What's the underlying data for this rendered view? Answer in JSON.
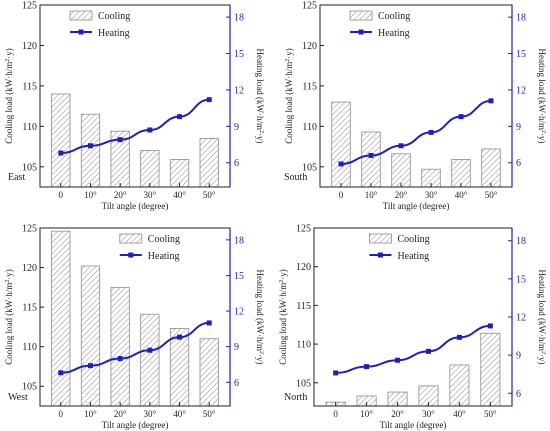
{
  "chart_data": [
    {
      "type": "bar",
      "panel_label": "East",
      "categories": [
        "0",
        "10°",
        "20°",
        "30°",
        "40°",
        "50°"
      ],
      "xlabel": "Tilt angle (degree)",
      "ylabel": "Cooling load  (kW·h/m²·y)",
      "y2label": "Heating load (kW·h/m²·y)",
      "ylim": [
        102.5,
        125
      ],
      "yticks": [
        105,
        110,
        115,
        120,
        125
      ],
      "y2lim": [
        4,
        19
      ],
      "y2ticks": [
        6,
        9,
        12,
        15,
        18
      ],
      "legend_position": "top-left",
      "series": [
        {
          "name": "Cooling",
          "kind": "bar",
          "axis": "left",
          "values": [
            114.0,
            111.5,
            109.4,
            107.0,
            105.9,
            108.5
          ]
        },
        {
          "name": "Heating",
          "kind": "line",
          "axis": "right",
          "values": [
            6.8,
            7.4,
            7.9,
            8.7,
            9.8,
            11.2
          ]
        }
      ]
    },
    {
      "type": "bar",
      "panel_label": "South",
      "categories": [
        "0",
        "10°",
        "20°",
        "30°",
        "40°",
        "50°"
      ],
      "xlabel": "Tilt angle (degree)",
      "ylabel": "Cooling load  (kW·h/m²·y)",
      "y2label": "Heating load (kW·h/m²·y)",
      "ylim": [
        102.5,
        125
      ],
      "yticks": [
        105,
        110,
        115,
        120,
        125
      ],
      "y2lim": [
        4,
        19
      ],
      "y2ticks": [
        6,
        9,
        12,
        15,
        18
      ],
      "legend_position": "top-left",
      "series": [
        {
          "name": "Cooling",
          "kind": "bar",
          "axis": "left",
          "values": [
            113.0,
            109.3,
            106.6,
            104.7,
            105.9,
            107.2
          ]
        },
        {
          "name": "Heating",
          "kind": "line",
          "axis": "right",
          "values": [
            5.9,
            6.6,
            7.4,
            8.5,
            9.8,
            11.1
          ]
        }
      ]
    },
    {
      "type": "bar",
      "panel_label": "West",
      "categories": [
        "0",
        "10°",
        "20°",
        "30°",
        "40°",
        "50°"
      ],
      "xlabel": "Tilt angle (degree)",
      "ylabel": "Cooling load  (kW·h/m²·y)",
      "y2label": "Heating load (kW·h/m²·y)",
      "ylim": [
        102.5,
        125
      ],
      "yticks": [
        105,
        110,
        115,
        120,
        125
      ],
      "y2lim": [
        4,
        19
      ],
      "y2ticks": [
        6,
        9,
        12,
        15,
        18
      ],
      "legend_position": "top-right",
      "series": [
        {
          "name": "Cooling",
          "kind": "bar",
          "axis": "left",
          "values": [
            124.6,
            120.2,
            117.5,
            114.1,
            112.3,
            111.0
          ]
        },
        {
          "name": "Heating",
          "kind": "line",
          "axis": "right",
          "values": [
            6.8,
            7.4,
            8.0,
            8.7,
            9.8,
            11.0
          ]
        }
      ]
    },
    {
      "type": "bar",
      "panel_label": "North",
      "categories": [
        "0",
        "10°",
        "20°",
        "30°",
        "40°",
        "50°"
      ],
      "xlabel": "Tilt angle (degree)",
      "ylabel": "Cooling load  (kW·h/m²·y)",
      "y2label": "Heating load (kW·h/m²·y)",
      "ylim": [
        102,
        125
      ],
      "yticks": [
        105,
        110,
        115,
        120,
        125
      ],
      "y2lim": [
        5,
        19
      ],
      "y2ticks": [
        6,
        9,
        12,
        15,
        18
      ],
      "legend_position": "top-center",
      "series": [
        {
          "name": "Cooling",
          "kind": "bar",
          "axis": "left",
          "values": [
            102.5,
            103.3,
            103.8,
            104.6,
            107.3,
            111.4
          ]
        },
        {
          "name": "Heating",
          "kind": "line",
          "axis": "right",
          "values": [
            7.6,
            8.1,
            8.6,
            9.3,
            10.4,
            11.3
          ]
        }
      ]
    }
  ],
  "colors": {
    "line": "#1f1fbf",
    "right_axis": "#1f1fbf",
    "bar_hatch": "#8c8c8c",
    "axis": "#222222",
    "text": "#222222"
  }
}
